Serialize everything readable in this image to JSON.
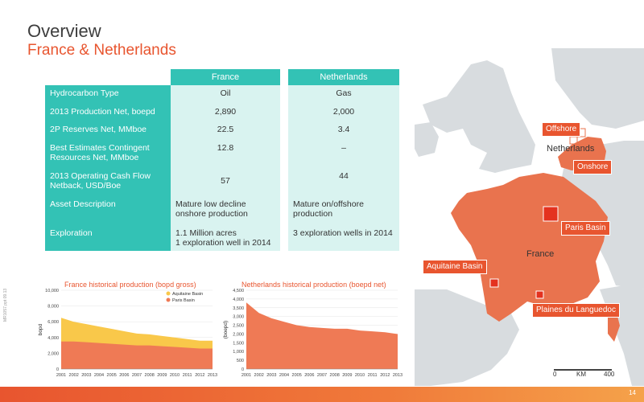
{
  "header": {
    "title": "Overview",
    "subtitle": "France & Netherlands"
  },
  "table": {
    "col_france": "France",
    "col_netherlands": "Netherlands",
    "rows": [
      {
        "label": "Hydrocarbon Type",
        "france": "Oil",
        "netherlands": "Gas"
      },
      {
        "label": "2013 Production Net, boepd",
        "france": "2,890",
        "netherlands": "2,000"
      },
      {
        "label": "2P Reserves Net, MMboe",
        "france": "22.5",
        "netherlands": "3.4"
      },
      {
        "label": "Best Estimates Contingent Resources Net, MMboe",
        "france": "12.8",
        "netherlands": "–"
      },
      {
        "label": "2013 Operating Cash Flow Netback, USD/Boe",
        "france": "57",
        "netherlands": "44"
      },
      {
        "label": "Asset Description",
        "france": "Mature low decline onshore production",
        "netherlands": "Mature on/offshore production"
      },
      {
        "label": "Exploration",
        "france": "1.1 Million acres\n1 exploration well in 2014",
        "netherlands": "3 exploration wells in 2014"
      }
    ]
  },
  "chart_data": [
    {
      "type": "area",
      "title": "France historical production (bopd gross)",
      "ylabel": "bopd",
      "xlabel": "",
      "ylim": [
        0,
        10000
      ],
      "yticks": [
        "0",
        "2,000",
        "4,000",
        "6,000",
        "8,000",
        "10,000"
      ],
      "x": [
        "2001",
        "2002",
        "2003",
        "2004",
        "2005",
        "2006",
        "2007",
        "2008",
        "2009",
        "2010",
        "2011",
        "2012",
        "2013"
      ],
      "legend": "top-right",
      "series": [
        {
          "name": "Aquitaine Basin",
          "color": "#f9c84a",
          "values": [
            3000,
            2500,
            2300,
            2100,
            1900,
            1700,
            1500,
            1400,
            1300,
            1200,
            1100,
            1000,
            1000
          ]
        },
        {
          "name": "Paris Basin",
          "color": "#ef7a55",
          "values": [
            3500,
            3500,
            3400,
            3300,
            3200,
            3100,
            3000,
            3000,
            2900,
            2800,
            2700,
            2600,
            2600
          ]
        }
      ]
    },
    {
      "type": "area",
      "title": "Netherlands historical production (boepd net)",
      "ylabel": "(boepd)",
      "xlabel": "",
      "ylim": [
        0,
        4500
      ],
      "yticks": [
        "0",
        "500",
        "1,000",
        "1,500",
        "2,000",
        "2,500",
        "3,000",
        "3,500",
        "4,000",
        "4,500"
      ],
      "x": [
        "2001",
        "2002",
        "2003",
        "2004",
        "2005",
        "2006",
        "2007",
        "2008",
        "2009",
        "2010",
        "2011",
        "2012",
        "2013"
      ],
      "series": [
        {
          "name": "",
          "color": "#ef7a55",
          "values": [
            3800,
            3200,
            2900,
            2700,
            2500,
            2400,
            2350,
            2300,
            2300,
            2200,
            2150,
            2100,
            2000
          ]
        }
      ]
    }
  ],
  "map": {
    "tags": {
      "offshore": "Offshore",
      "onshore": "Onshore",
      "paris": "Paris Basin",
      "aquitaine": "Aquitaine Basin",
      "plaines": "Plaines du Languedoc"
    },
    "labels": {
      "netherlands": "Netherlands",
      "france": "France"
    },
    "scale": {
      "zero": "0",
      "km": "KM",
      "max": "400"
    }
  },
  "side_code": "MR1057.ppt 09.13",
  "footer": {
    "page": "14"
  }
}
